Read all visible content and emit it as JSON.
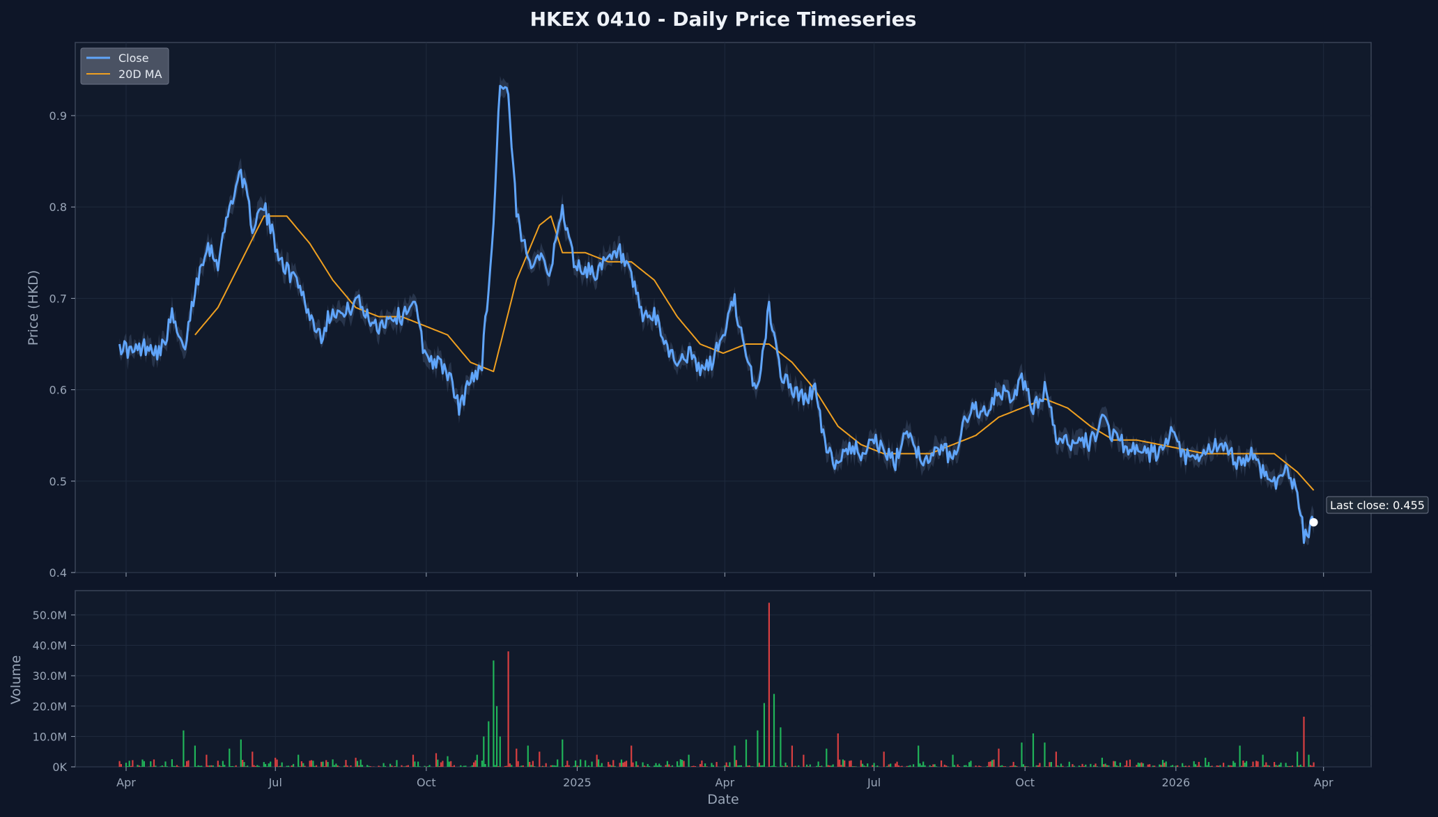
{
  "chart_data": {
    "type": "line",
    "title": "HKEX 0410 - Daily Price Timeseries",
    "xlabel": "Date",
    "ylabel": "Price (HKD)",
    "volume_ylabel": "Volume",
    "x_range": [
      "2024-03-01",
      "2026-04-30"
    ],
    "ylim": [
      0.4,
      0.98
    ],
    "volume_ylim": [
      0,
      58000000
    ],
    "grid": true,
    "legend_position": "top-left",
    "colors": {
      "background": "#0e1628",
      "panel": "#111a2b",
      "close": "#60a5fa",
      "ma": "#f0a020",
      "band": "#3b4b66",
      "volume_up": "#22c55e",
      "volume_down": "#ef4444"
    },
    "x_ticks": [
      {
        "date": "2024-04-01",
        "label": "Apr"
      },
      {
        "date": "2024-07-01",
        "label": "Jul"
      },
      {
        "date": "2024-10-01",
        "label": "Oct"
      },
      {
        "date": "2025-01-01",
        "label": "2025"
      },
      {
        "date": "2025-04-01",
        "label": "Apr"
      },
      {
        "date": "2025-07-01",
        "label": "Jul"
      },
      {
        "date": "2025-10-01",
        "label": "Oct"
      },
      {
        "date": "2026-01-01",
        "label": "2026"
      },
      {
        "date": "2026-04-01",
        "label": "Apr"
      }
    ],
    "y_ticks": [
      {
        "value": 0.4,
        "label": "0.4"
      },
      {
        "value": 0.5,
        "label": "0.5"
      },
      {
        "value": 0.6,
        "label": "0.6"
      },
      {
        "value": 0.7,
        "label": "0.7"
      },
      {
        "value": 0.8,
        "label": "0.8"
      },
      {
        "value": 0.9,
        "label": "0.9"
      }
    ],
    "volume_ticks": [
      {
        "value": 0,
        "label": "0K"
      },
      {
        "value": 10000000,
        "label": "10.0M"
      },
      {
        "value": 20000000,
        "label": "20.0M"
      },
      {
        "value": 30000000,
        "label": "30.0M"
      },
      {
        "value": 40000000,
        "label": "40.0M"
      },
      {
        "value": 50000000,
        "label": "50.0M"
      }
    ],
    "legend": [
      {
        "name": "Close",
        "key": "close"
      },
      {
        "name": "20D MA",
        "key": "ma"
      }
    ],
    "annotation": {
      "text": "Last close: 0.455",
      "date": "2026-03-26",
      "value": 0.455
    },
    "series": [
      {
        "name": "Close",
        "points": [
          [
            "2024-03-28",
            0.65
          ],
          [
            "2024-04-05",
            0.64
          ],
          [
            "2024-04-15",
            0.65
          ],
          [
            "2024-04-22",
            0.64
          ],
          [
            "2024-04-29",
            0.68
          ],
          [
            "2024-05-06",
            0.64
          ],
          [
            "2024-05-13",
            0.71
          ],
          [
            "2024-05-20",
            0.76
          ],
          [
            "2024-05-27",
            0.74
          ],
          [
            "2024-06-03",
            0.8
          ],
          [
            "2024-06-10",
            0.84
          ],
          [
            "2024-06-17",
            0.78
          ],
          [
            "2024-06-24",
            0.8
          ],
          [
            "2024-07-01",
            0.76
          ],
          [
            "2024-07-08",
            0.73
          ],
          [
            "2024-07-15",
            0.72
          ],
          [
            "2024-07-22",
            0.68
          ],
          [
            "2024-07-29",
            0.66
          ],
          [
            "2024-08-05",
            0.69
          ],
          [
            "2024-08-12",
            0.68
          ],
          [
            "2024-08-19",
            0.7
          ],
          [
            "2024-08-26",
            0.68
          ],
          [
            "2024-09-02",
            0.67
          ],
          [
            "2024-09-09",
            0.68
          ],
          [
            "2024-09-16",
            0.68
          ],
          [
            "2024-09-23",
            0.7
          ],
          [
            "2024-09-30",
            0.64
          ],
          [
            "2024-10-07",
            0.63
          ],
          [
            "2024-10-14",
            0.62
          ],
          [
            "2024-10-21",
            0.58
          ],
          [
            "2024-10-28",
            0.61
          ],
          [
            "2024-11-04",
            0.63
          ],
          [
            "2024-11-11",
            0.78
          ],
          [
            "2024-11-15",
            0.94
          ],
          [
            "2024-11-20",
            0.92
          ],
          [
            "2024-11-25",
            0.79
          ],
          [
            "2024-12-02",
            0.74
          ],
          [
            "2024-12-09",
            0.75
          ],
          [
            "2024-12-16",
            0.73
          ],
          [
            "2024-12-23",
            0.8
          ],
          [
            "2024-12-30",
            0.74
          ],
          [
            "2025-01-06",
            0.73
          ],
          [
            "2025-01-13",
            0.73
          ],
          [
            "2025-01-20",
            0.74
          ],
          [
            "2025-01-27",
            0.75
          ],
          [
            "2025-02-03",
            0.72
          ],
          [
            "2025-02-10",
            0.68
          ],
          [
            "2025-02-17",
            0.68
          ],
          [
            "2025-02-24",
            0.65
          ],
          [
            "2025-03-03",
            0.63
          ],
          [
            "2025-03-10",
            0.64
          ],
          [
            "2025-03-17",
            0.62
          ],
          [
            "2025-03-24",
            0.63
          ],
          [
            "2025-03-31",
            0.66
          ],
          [
            "2025-04-07",
            0.7
          ],
          [
            "2025-04-14",
            0.63
          ],
          [
            "2025-04-21",
            0.6
          ],
          [
            "2025-04-28",
            0.69
          ],
          [
            "2025-05-05",
            0.62
          ],
          [
            "2025-05-12",
            0.6
          ],
          [
            "2025-05-19",
            0.59
          ],
          [
            "2025-05-26",
            0.6
          ],
          [
            "2025-06-02",
            0.53
          ],
          [
            "2025-06-09",
            0.52
          ],
          [
            "2025-06-16",
            0.54
          ],
          [
            "2025-06-23",
            0.53
          ],
          [
            "2025-06-30",
            0.55
          ],
          [
            "2025-07-07",
            0.53
          ],
          [
            "2025-07-14",
            0.52
          ],
          [
            "2025-07-21",
            0.56
          ],
          [
            "2025-07-28",
            0.53
          ],
          [
            "2025-08-04",
            0.52
          ],
          [
            "2025-08-11",
            0.54
          ],
          [
            "2025-08-18",
            0.52
          ],
          [
            "2025-08-25",
            0.57
          ],
          [
            "2025-09-01",
            0.58
          ],
          [
            "2025-09-08",
            0.57
          ],
          [
            "2025-09-15",
            0.6
          ],
          [
            "2025-09-22",
            0.59
          ],
          [
            "2025-09-29",
            0.61
          ],
          [
            "2025-10-06",
            0.58
          ],
          [
            "2025-10-13",
            0.6
          ],
          [
            "2025-10-20",
            0.55
          ],
          [
            "2025-10-27",
            0.54
          ],
          [
            "2025-11-03",
            0.55
          ],
          [
            "2025-11-10",
            0.54
          ],
          [
            "2025-11-17",
            0.57
          ],
          [
            "2025-11-24",
            0.55
          ],
          [
            "2025-12-01",
            0.54
          ],
          [
            "2025-12-08",
            0.53
          ],
          [
            "2025-12-15",
            0.53
          ],
          [
            "2025-12-22",
            0.53
          ],
          [
            "2025-12-29",
            0.55
          ],
          [
            "2026-01-05",
            0.53
          ],
          [
            "2026-01-12",
            0.52
          ],
          [
            "2026-01-19",
            0.53
          ],
          [
            "2026-01-26",
            0.54
          ],
          [
            "2026-02-02",
            0.53
          ],
          [
            "2026-02-09",
            0.52
          ],
          [
            "2026-02-16",
            0.53
          ],
          [
            "2026-02-23",
            0.51
          ],
          [
            "2026-03-02",
            0.5
          ],
          [
            "2026-03-09",
            0.51
          ],
          [
            "2026-03-16",
            0.49
          ],
          [
            "2026-03-20",
            0.44
          ],
          [
            "2026-03-26",
            0.455
          ]
        ]
      },
      {
        "name": "20D MA",
        "points": [
          [
            "2024-05-13",
            0.66
          ],
          [
            "2024-05-27",
            0.69
          ],
          [
            "2024-06-10",
            0.74
          ],
          [
            "2024-06-24",
            0.79
          ],
          [
            "2024-07-08",
            0.79
          ],
          [
            "2024-07-22",
            0.76
          ],
          [
            "2024-08-05",
            0.72
          ],
          [
            "2024-08-19",
            0.69
          ],
          [
            "2024-09-02",
            0.68
          ],
          [
            "2024-09-16",
            0.68
          ],
          [
            "2024-09-30",
            0.67
          ],
          [
            "2024-10-14",
            0.66
          ],
          [
            "2024-10-28",
            0.63
          ],
          [
            "2024-11-11",
            0.62
          ],
          [
            "2024-11-25",
            0.72
          ],
          [
            "2024-12-09",
            0.78
          ],
          [
            "2024-12-16",
            0.79
          ],
          [
            "2024-12-23",
            0.75
          ],
          [
            "2025-01-06",
            0.75
          ],
          [
            "2025-01-20",
            0.74
          ],
          [
            "2025-02-03",
            0.74
          ],
          [
            "2025-02-17",
            0.72
          ],
          [
            "2025-03-03",
            0.68
          ],
          [
            "2025-03-17",
            0.65
          ],
          [
            "2025-03-31",
            0.64
          ],
          [
            "2025-04-14",
            0.65
          ],
          [
            "2025-04-28",
            0.65
          ],
          [
            "2025-05-12",
            0.63
          ],
          [
            "2025-05-26",
            0.6
          ],
          [
            "2025-06-09",
            0.56
          ],
          [
            "2025-06-23",
            0.54
          ],
          [
            "2025-07-07",
            0.53
          ],
          [
            "2025-07-21",
            0.53
          ],
          [
            "2025-08-04",
            0.53
          ],
          [
            "2025-08-18",
            0.54
          ],
          [
            "2025-09-01",
            0.55
          ],
          [
            "2025-09-15",
            0.57
          ],
          [
            "2025-09-29",
            0.58
          ],
          [
            "2025-10-13",
            0.59
          ],
          [
            "2025-10-27",
            0.58
          ],
          [
            "2025-11-10",
            0.56
          ],
          [
            "2025-11-24",
            0.545
          ],
          [
            "2025-12-08",
            0.545
          ],
          [
            "2025-12-22",
            0.54
          ],
          [
            "2026-01-05",
            0.535
          ],
          [
            "2026-01-19",
            0.53
          ],
          [
            "2026-02-02",
            0.53
          ],
          [
            "2026-02-16",
            0.53
          ],
          [
            "2026-03-02",
            0.53
          ],
          [
            "2026-03-16",
            0.51
          ],
          [
            "2026-03-26",
            0.49
          ]
        ]
      }
    ],
    "volume_spikes": [
      [
        "2024-04-29",
        2500000,
        "up"
      ],
      [
        "2024-05-06",
        12000000,
        "up"
      ],
      [
        "2024-05-13",
        7000000,
        "up"
      ],
      [
        "2024-05-20",
        4000000,
        "down"
      ],
      [
        "2024-06-03",
        6000000,
        "up"
      ],
      [
        "2024-06-10",
        9000000,
        "up"
      ],
      [
        "2024-06-17",
        5000000,
        "down"
      ],
      [
        "2024-07-01",
        3000000,
        "down"
      ],
      [
        "2024-07-15",
        4000000,
        "up"
      ],
      [
        "2024-08-19",
        3000000,
        "down"
      ],
      [
        "2024-09-23",
        4000000,
        "down"
      ],
      [
        "2024-10-07",
        4500000,
        "down"
      ],
      [
        "2024-10-14",
        3500000,
        "up"
      ],
      [
        "2024-11-01",
        4000000,
        "up"
      ],
      [
        "2024-11-05",
        10000000,
        "up"
      ],
      [
        "2024-11-08",
        15000000,
        "up"
      ],
      [
        "2024-11-11",
        35000000,
        "up"
      ],
      [
        "2024-11-13",
        20000000,
        "up"
      ],
      [
        "2024-11-15",
        10000000,
        "up"
      ],
      [
        "2024-11-20",
        38000000,
        "down"
      ],
      [
        "2024-11-25",
        6000000,
        "down"
      ],
      [
        "2024-12-02",
        7000000,
        "up"
      ],
      [
        "2024-12-09",
        5000000,
        "down"
      ],
      [
        "2024-12-23",
        9000000,
        "up"
      ],
      [
        "2025-01-13",
        4000000,
        "down"
      ],
      [
        "2025-02-03",
        7000000,
        "down"
      ],
      [
        "2025-03-10",
        4000000,
        "up"
      ],
      [
        "2025-04-07",
        7000000,
        "up"
      ],
      [
        "2025-04-14",
        9000000,
        "up"
      ],
      [
        "2025-04-21",
        12000000,
        "up"
      ],
      [
        "2025-04-25",
        21000000,
        "up"
      ],
      [
        "2025-04-28",
        54000000,
        "down"
      ],
      [
        "2025-05-01",
        24000000,
        "up"
      ],
      [
        "2025-05-05",
        13000000,
        "up"
      ],
      [
        "2025-05-12",
        7000000,
        "down"
      ],
      [
        "2025-05-19",
        4000000,
        "down"
      ],
      [
        "2025-06-02",
        6000000,
        "up"
      ],
      [
        "2025-06-09",
        11000000,
        "down"
      ],
      [
        "2025-07-07",
        5000000,
        "down"
      ],
      [
        "2025-07-28",
        7000000,
        "up"
      ],
      [
        "2025-08-18",
        4000000,
        "up"
      ],
      [
        "2025-09-15",
        6000000,
        "down"
      ],
      [
        "2025-09-29",
        8000000,
        "up"
      ],
      [
        "2025-10-06",
        11000000,
        "up"
      ],
      [
        "2025-10-13",
        8000000,
        "up"
      ],
      [
        "2025-10-20",
        5000000,
        "down"
      ],
      [
        "2025-11-17",
        3000000,
        "up"
      ],
      [
        "2026-01-19",
        3000000,
        "up"
      ],
      [
        "2026-02-09",
        7000000,
        "up"
      ],
      [
        "2026-02-23",
        4000000,
        "up"
      ],
      [
        "2026-03-16",
        5000000,
        "up"
      ],
      [
        "2026-03-20",
        16500000,
        "down"
      ],
      [
        "2026-03-23",
        4000000,
        "up"
      ]
    ]
  }
}
